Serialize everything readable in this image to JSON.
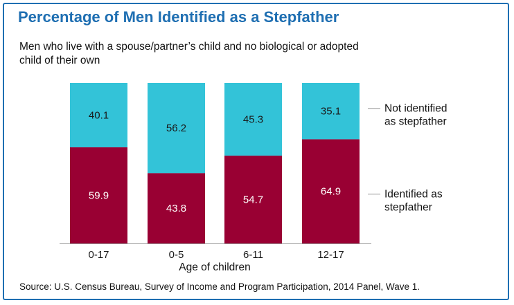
{
  "header": {
    "title": "Percentage of Men Identified as a Stepfather",
    "subtitle": "Men who live with a spouse/partner’s child and no biological or adopted child of their own"
  },
  "footer": {
    "source": "Source: U.S. Census Bureau, Survey of Income and Program Participation, 2014 Panel, Wave 1."
  },
  "colors": {
    "frame": "#1f6fb2",
    "title": "#1f6fb2",
    "identified": "#990033",
    "not_identified": "#33c3d8"
  },
  "chart_data": {
    "type": "bar",
    "stacked": true,
    "title": "Percentage of Men Identified as a Stepfather",
    "subtitle": "Men who live with a spouse/partner’s child and no biological or adopted child of their own",
    "xlabel": "Age of children",
    "ylabel": "",
    "ylim": [
      0,
      100
    ],
    "categories": [
      "0-17",
      "0-5",
      "6-11",
      "12-17"
    ],
    "series": [
      {
        "name": "Identified as stepfather",
        "values": [
          59.9,
          43.8,
          54.7,
          64.9
        ],
        "color": "#990033"
      },
      {
        "name": "Not identified as stepfather",
        "values": [
          40.1,
          56.2,
          45.3,
          35.1
        ],
        "color": "#33c3d8"
      }
    ],
    "legend": {
      "placement": "right",
      "entries": [
        {
          "lines": [
            "Not identified",
            "as stepfather"
          ]
        },
        {
          "lines": [
            "Identified as",
            "stepfather"
          ]
        }
      ]
    },
    "grid": false
  }
}
